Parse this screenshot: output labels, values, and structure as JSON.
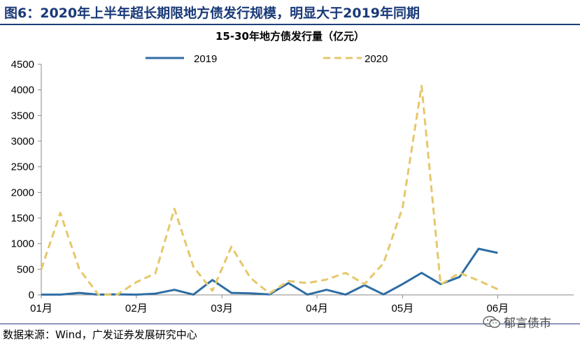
{
  "header": {
    "figure_title": "图6：2020年上半年超长期限地方债发行规模，明显大于2019年同期"
  },
  "footer": {
    "source": "数据来源：Wind，广发证券发展研究中心",
    "watermark_text": "郁言债市",
    "watermark_icon": "wechat-icon"
  },
  "chart_data": {
    "type": "line",
    "title": "15-30年地方债发行量（亿元）",
    "xlabel": "",
    "ylabel": "",
    "ylim": [
      0,
      4500
    ],
    "yticks": [
      0,
      500,
      1000,
      1500,
      2000,
      2500,
      3000,
      3500,
      4000,
      4500
    ],
    "x": [
      0,
      1,
      2,
      3,
      4,
      5,
      6,
      7,
      8,
      9,
      10,
      11,
      12,
      13,
      14,
      15,
      16,
      17,
      18,
      19,
      20,
      21,
      22,
      23,
      24,
      25
    ],
    "xticks": [
      {
        "x": 0,
        "label": "01月"
      },
      {
        "x": 5,
        "label": "02月"
      },
      {
        "x": 9.5,
        "label": "03月"
      },
      {
        "x": 14.5,
        "label": "04月"
      },
      {
        "x": 19,
        "label": "05月"
      },
      {
        "x": 24,
        "label": "06月"
      }
    ],
    "xlim": [
      0,
      28
    ],
    "grid": false,
    "legend_position": "top-center",
    "series": [
      {
        "name": "2019",
        "color": "#2e6da4",
        "dash": "solid",
        "values": [
          5,
          5,
          40,
          5,
          10,
          5,
          25,
          100,
          5,
          290,
          40,
          30,
          10,
          230,
          5,
          100,
          5,
          190,
          10,
          210,
          430,
          210,
          350,
          900,
          820,
          null
        ]
      },
      {
        "name": "2020",
        "color": "#e6c76a",
        "dash": "dashed",
        "values": [
          500,
          1600,
          500,
          5,
          5,
          250,
          420,
          1680,
          550,
          80,
          940,
          330,
          30,
          270,
          230,
          300,
          430,
          210,
          620,
          1700,
          4080,
          200,
          430,
          280,
          110,
          null
        ]
      }
    ]
  }
}
